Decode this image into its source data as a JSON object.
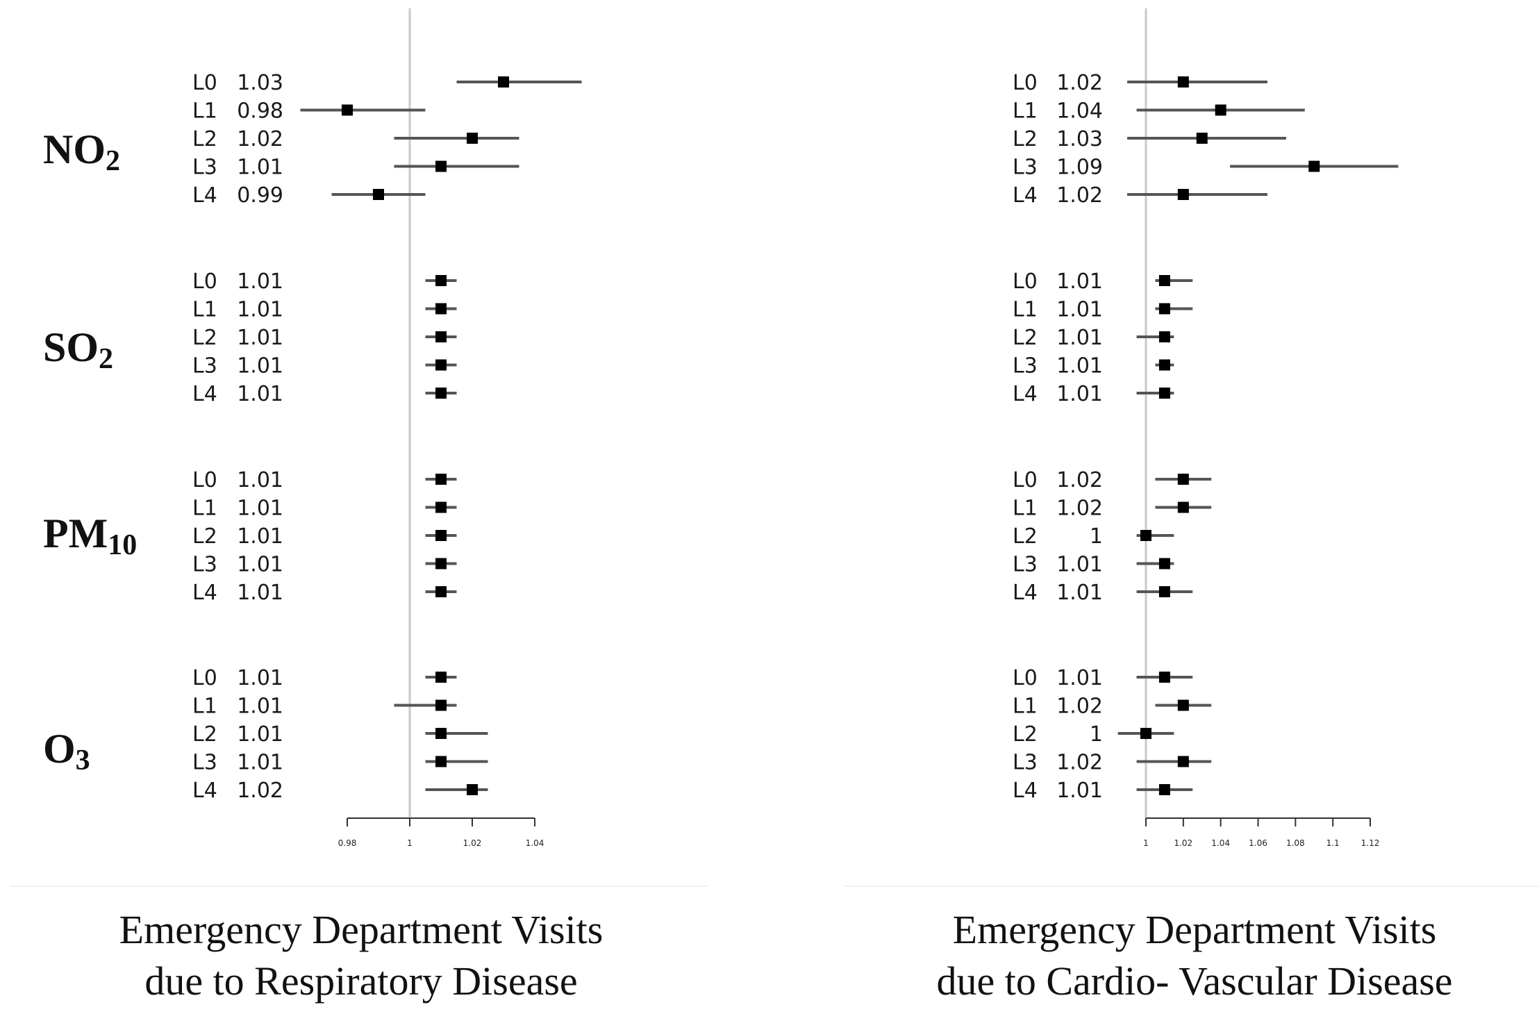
{
  "chart_data": [
    {
      "type": "forest",
      "title": "",
      "caption_line1": "Emergency Department Visits",
      "caption_line2": "due to Respiratory Disease",
      "xlabel": "",
      "ylabel": "",
      "xlim": [
        0.98,
        1.04
      ],
      "xticks": [
        0.98,
        1,
        1.02,
        1.04
      ],
      "xtick_labels": [
        "0.98",
        "1",
        "1.02",
        "1.04"
      ],
      "reference_line": 1,
      "groups": [
        {
          "pollutant": "NO",
          "subscript": "2",
          "rows": [
            {
              "lag": "L0",
              "label": "1.03",
              "est": 1.03,
              "lo": 1.015,
              "hi": 1.055
            },
            {
              "lag": "L1",
              "label": "0.98",
              "est": 0.98,
              "lo": 0.965,
              "hi": 1.005
            },
            {
              "lag": "L2",
              "label": "1.02",
              "est": 1.02,
              "lo": 0.995,
              "hi": 1.035
            },
            {
              "lag": "L3",
              "label": "1.01",
              "est": 1.01,
              "lo": 0.995,
              "hi": 1.035
            },
            {
              "lag": "L4",
              "label": "0.99",
              "est": 0.99,
              "lo": 0.975,
              "hi": 1.005
            }
          ]
        },
        {
          "pollutant": "SO",
          "subscript": "2",
          "rows": [
            {
              "lag": "L0",
              "label": "1.01",
              "est": 1.01,
              "lo": 1.005,
              "hi": 1.015
            },
            {
              "lag": "L1",
              "label": "1.01",
              "est": 1.01,
              "lo": 1.005,
              "hi": 1.015
            },
            {
              "lag": "L2",
              "label": "1.01",
              "est": 1.01,
              "lo": 1.005,
              "hi": 1.015
            },
            {
              "lag": "L3",
              "label": "1.01",
              "est": 1.01,
              "lo": 1.005,
              "hi": 1.015
            },
            {
              "lag": "L4",
              "label": "1.01",
              "est": 1.01,
              "lo": 1.005,
              "hi": 1.015
            }
          ]
        },
        {
          "pollutant": "PM",
          "subscript": "10",
          "rows": [
            {
              "lag": "L0",
              "label": "1.01",
              "est": 1.01,
              "lo": 1.005,
              "hi": 1.015
            },
            {
              "lag": "L1",
              "label": "1.01",
              "est": 1.01,
              "lo": 1.005,
              "hi": 1.015
            },
            {
              "lag": "L2",
              "label": "1.01",
              "est": 1.01,
              "lo": 1.005,
              "hi": 1.015
            },
            {
              "lag": "L3",
              "label": "1.01",
              "est": 1.01,
              "lo": 1.005,
              "hi": 1.015
            },
            {
              "lag": "L4",
              "label": "1.01",
              "est": 1.01,
              "lo": 1.005,
              "hi": 1.015
            }
          ]
        },
        {
          "pollutant": "O",
          "subscript": "3",
          "rows": [
            {
              "lag": "L0",
              "label": "1.01",
              "est": 1.01,
              "lo": 1.005,
              "hi": 1.015
            },
            {
              "lag": "L1",
              "label": "1.01",
              "est": 1.01,
              "lo": 0.995,
              "hi": 1.015
            },
            {
              "lag": "L2",
              "label": "1.01",
              "est": 1.01,
              "lo": 1.005,
              "hi": 1.025
            },
            {
              "lag": "L3",
              "label": "1.01",
              "est": 1.01,
              "lo": 1.005,
              "hi": 1.025
            },
            {
              "lag": "L4",
              "label": "1.02",
              "est": 1.02,
              "lo": 1.005,
              "hi": 1.025
            }
          ]
        }
      ]
    },
    {
      "type": "forest",
      "title": "",
      "caption_line1": "Emergency Department Visits",
      "caption_line2": "due to Cardio- Vascular Disease",
      "xlabel": "",
      "ylabel": "",
      "xlim": [
        1.0,
        1.12
      ],
      "xticks": [
        1,
        1.02,
        1.04,
        1.06,
        1.08,
        1.1,
        1.12
      ],
      "xtick_labels": [
        "1",
        "1.02",
        "1.04",
        "1.06",
        "1.08",
        "1.1",
        "1.12"
      ],
      "reference_line": 1,
      "groups": [
        {
          "pollutant": "NO",
          "subscript": "2",
          "rows": [
            {
              "lag": "L0",
              "label": "1.02",
              "est": 1.02,
              "lo": 0.99,
              "hi": 1.065
            },
            {
              "lag": "L1",
              "label": "1.04",
              "est": 1.04,
              "lo": 0.995,
              "hi": 1.085
            },
            {
              "lag": "L2",
              "label": "1.03",
              "est": 1.03,
              "lo": 0.99,
              "hi": 1.075
            },
            {
              "lag": "L3",
              "label": "1.09",
              "est": 1.09,
              "lo": 1.045,
              "hi": 1.135
            },
            {
              "lag": "L4",
              "label": "1.02",
              "est": 1.02,
              "lo": 0.99,
              "hi": 1.065
            }
          ]
        },
        {
          "pollutant": "SO",
          "subscript": "2",
          "rows": [
            {
              "lag": "L0",
              "label": "1.01",
              "est": 1.01,
              "lo": 1.005,
              "hi": 1.025
            },
            {
              "lag": "L1",
              "label": "1.01",
              "est": 1.01,
              "lo": 1.005,
              "hi": 1.025
            },
            {
              "lag": "L2",
              "label": "1.01",
              "est": 1.01,
              "lo": 0.995,
              "hi": 1.015
            },
            {
              "lag": "L3",
              "label": "1.01",
              "est": 1.01,
              "lo": 1.005,
              "hi": 1.015
            },
            {
              "lag": "L4",
              "label": "1.01",
              "est": 1.01,
              "lo": 0.995,
              "hi": 1.015
            }
          ]
        },
        {
          "pollutant": "PM",
          "subscript": "10",
          "rows": [
            {
              "lag": "L0",
              "label": "1.02",
              "est": 1.02,
              "lo": 1.005,
              "hi": 1.035
            },
            {
              "lag": "L1",
              "label": "1.02",
              "est": 1.02,
              "lo": 1.005,
              "hi": 1.035
            },
            {
              "lag": "L2",
              "label": "1",
              "est": 1.0,
              "lo": 0.995,
              "hi": 1.015
            },
            {
              "lag": "L3",
              "label": "1.01",
              "est": 1.01,
              "lo": 0.995,
              "hi": 1.015
            },
            {
              "lag": "L4",
              "label": "1.01",
              "est": 1.01,
              "lo": 0.995,
              "hi": 1.025
            }
          ]
        },
        {
          "pollutant": "O",
          "subscript": "3",
          "rows": [
            {
              "lag": "L0",
              "label": "1.01",
              "est": 1.01,
              "lo": 0.995,
              "hi": 1.025
            },
            {
              "lag": "L1",
              "label": "1.02",
              "est": 1.02,
              "lo": 1.005,
              "hi": 1.035
            },
            {
              "lag": "L2",
              "label": "1",
              "est": 1.0,
              "lo": 0.985,
              "hi": 1.015
            },
            {
              "lag": "L3",
              "label": "1.02",
              "est": 1.02,
              "lo": 0.995,
              "hi": 1.035
            },
            {
              "lag": "L4",
              "label": "1.01",
              "est": 1.01,
              "lo": 0.995,
              "hi": 1.025
            }
          ]
        }
      ]
    }
  ],
  "colors": {
    "marker": "#000000",
    "ci": "#555555",
    "reference": "#c8c8c8",
    "axis": "#333333",
    "text": "#1a1a1a"
  }
}
